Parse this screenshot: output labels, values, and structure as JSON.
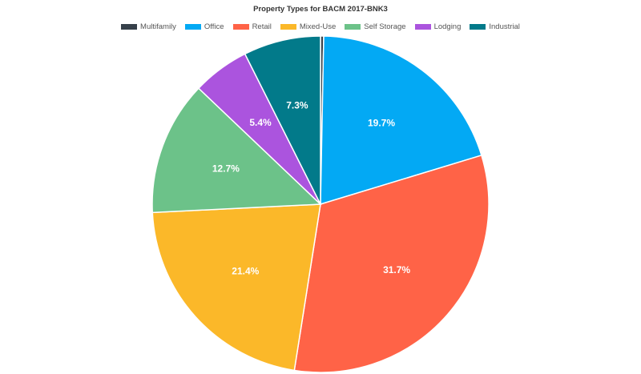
{
  "chart_data": {
    "type": "pie",
    "title": "Property Types for BACM 2017-BNK3",
    "legend_position": "top",
    "slices": [
      {
        "name": "Multifamily",
        "value": 0.3,
        "label": "",
        "color": "#36404a"
      },
      {
        "name": "Office",
        "value": 19.7,
        "label": "19.7%",
        "color": "#03a9f4"
      },
      {
        "name": "Retail",
        "value": 31.7,
        "label": "31.7%",
        "color": "#ff6347"
      },
      {
        "name": "Mixed-Use",
        "value": 21.4,
        "label": "21.4%",
        "color": "#fbb829"
      },
      {
        "name": "Self Storage",
        "value": 12.7,
        "label": "12.7%",
        "color": "#6cc289"
      },
      {
        "name": "Lodging",
        "value": 5.4,
        "label": "5.4%",
        "color": "#ab54de"
      },
      {
        "name": "Industrial",
        "value": 7.3,
        "label": "7.3%",
        "color": "#027a8a"
      }
    ]
  }
}
